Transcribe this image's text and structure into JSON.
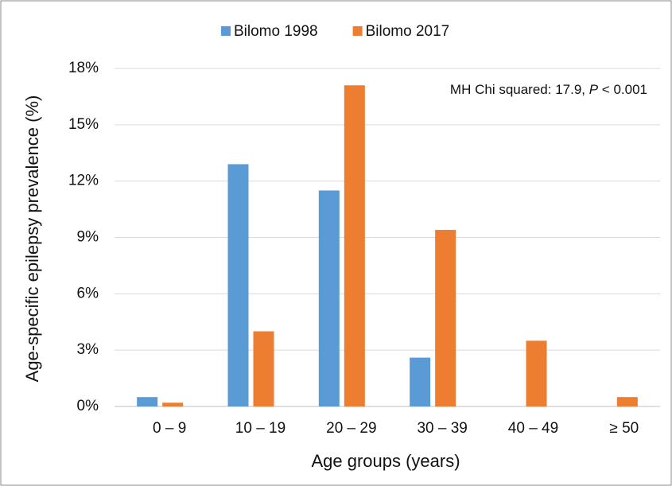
{
  "chart_data": {
    "type": "bar",
    "categories": [
      "0 – 9",
      "10 – 19",
      "20 – 29",
      "30 – 39",
      "40 – 49",
      "≥ 50"
    ],
    "series": [
      {
        "name": "Bilomo 1998",
        "color": "#5b9bd5",
        "values": [
          0.5,
          12.9,
          11.5,
          2.6,
          0,
          0
        ]
      },
      {
        "name": "Bilomo 2017",
        "color": "#ed7d31",
        "values": [
          0.2,
          4.0,
          17.1,
          9.4,
          3.5,
          0.5
        ]
      }
    ],
    "ylim": [
      0,
      18
    ],
    "yticks": [
      {
        "value": 0,
        "label": "0%"
      },
      {
        "value": 3,
        "label": "3%"
      },
      {
        "value": 6,
        "label": "6%"
      },
      {
        "value": 9,
        "label": "9%"
      },
      {
        "value": 12,
        "label": "12%"
      },
      {
        "value": 15,
        "label": "15%"
      },
      {
        "value": 18,
        "label": "18%"
      }
    ],
    "y_label": "Age-specific epilepsy prevalence (%)",
    "x_label": "Age groups (years)",
    "annotation": [
      "MH Chi squared: 17.9, ",
      "P",
      " < 0.001"
    ],
    "grid": true,
    "legend": "top"
  }
}
